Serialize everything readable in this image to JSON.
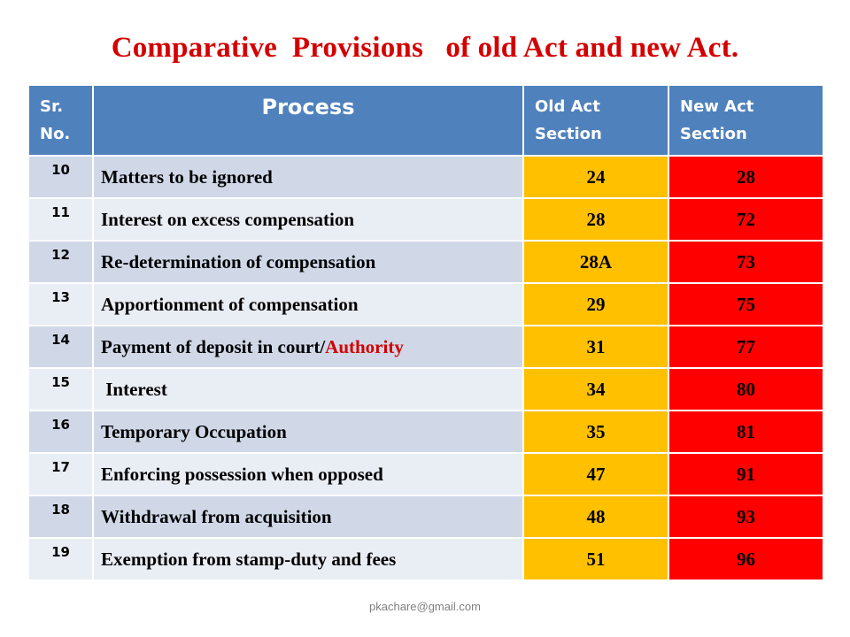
{
  "title": "Comparative  Provisions   of old Act and new Act.",
  "table": {
    "headers": {
      "sr": "Sr.\nNo.",
      "process": "Process",
      "old": "Old Act\nSection",
      "new": "New Act\nSection"
    },
    "rows": [
      {
        "sr": "10",
        "process": "Matters to be ignored",
        "process_accent": "",
        "old": "24",
        "new": "28"
      },
      {
        "sr": "11",
        "process": "Interest on excess compensation",
        "process_accent": "",
        "old": "28",
        "new": "72"
      },
      {
        "sr": "12",
        "process": "Re-determination of compensation",
        "process_accent": "",
        "old": "28A",
        "new": "73"
      },
      {
        "sr": "13",
        "process": "Apportionment of compensation",
        "process_accent": "",
        "old": "29",
        "new": "75"
      },
      {
        "sr": "14",
        "process": "Payment of deposit in court/",
        "process_accent": "Authority",
        "old": "31",
        "new": "77"
      },
      {
        "sr": "15",
        "process": " Interest",
        "process_accent": "",
        "old": "34",
        "new": "80"
      },
      {
        "sr": "16",
        "process": "Temporary Occupation",
        "process_accent": "",
        "old": "35",
        "new": "81"
      },
      {
        "sr": "17",
        "process": "Enforcing possession when opposed",
        "process_accent": "",
        "old": "47",
        "new": "91"
      },
      {
        "sr": "18",
        "process": "Withdrawal from acquisition",
        "process_accent": "",
        "old": "48",
        "new": "93"
      },
      {
        "sr": "19",
        "process": "Exemption from stamp-duty and fees",
        "process_accent": "",
        "old": "51",
        "new": "96"
      }
    ]
  },
  "footer": "pkachare@gmail.com",
  "colors": {
    "title": "#d40000",
    "header_bg": "#4f81bd",
    "row_dark": "#d0d8e8",
    "row_light": "#e9edf4",
    "old_col": "#ffc000",
    "new_col": "#ff0000"
  }
}
